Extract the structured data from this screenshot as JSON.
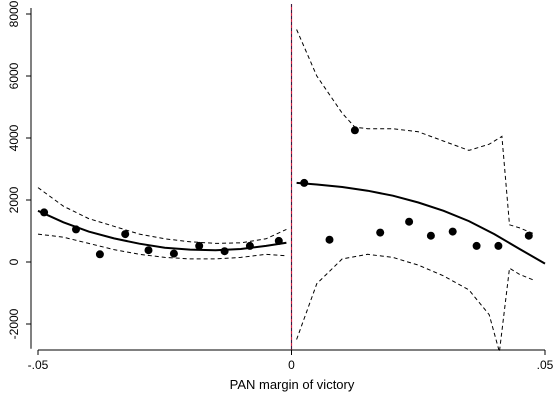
{
  "chart_data": {
    "type": "scatter",
    "title": "",
    "xlabel": "PAN margin of victory",
    "ylabel": "",
    "xlim": [
      -0.05,
      0.05
    ],
    "ylim": [
      -2800,
      8000
    ],
    "xticks": [
      -0.05,
      0,
      0.05
    ],
    "xtick_labels": [
      "-.05",
      "0",
      ".05"
    ],
    "yticks": [
      -2000,
      0,
      2000,
      4000,
      6000,
      8000
    ],
    "ytick_labels": [
      "-2000",
      "0",
      "2000",
      "4000",
      "6000",
      "8000"
    ],
    "grid": false,
    "legend": "none",
    "threshold_x": 0,
    "colors": {
      "points": "#000000",
      "fit": "#000000",
      "ci": "#000000",
      "threshold": "#8b1a4a"
    },
    "series": [
      {
        "kind": "scatter",
        "x": [
          -0.0488,
          -0.0425,
          -0.0378,
          -0.0328,
          -0.0282,
          -0.0232,
          -0.0182,
          -0.0132,
          -0.0082,
          -0.0025,
          0.0025,
          0.0075,
          0.0125,
          0.0175,
          0.0232,
          0.0275,
          0.0318,
          0.0365,
          0.0408,
          0.0468
        ],
        "y": [
          1600,
          1050,
          250,
          900,
          380,
          270,
          520,
          350,
          520,
          680,
          2550,
          720,
          4250,
          950,
          1300,
          850,
          980,
          520,
          520,
          850
        ]
      },
      {
        "kind": "line",
        "style": "solid",
        "x": [
          -0.05,
          -0.045,
          -0.04,
          -0.035,
          -0.03,
          -0.025,
          -0.02,
          -0.015,
          -0.01,
          -0.005,
          -0.001
        ],
        "y": [
          1650,
          1280,
          980,
          760,
          590,
          460,
          400,
          380,
          420,
          520,
          620
        ]
      },
      {
        "kind": "line",
        "style": "dashed",
        "x": [
          -0.05,
          -0.045,
          -0.04,
          -0.035,
          -0.03,
          -0.025,
          -0.02,
          -0.015,
          -0.01,
          -0.005,
          -0.001
        ],
        "y": [
          2400,
          1800,
          1400,
          1150,
          900,
          750,
          650,
          600,
          620,
          750,
          1050
        ]
      },
      {
        "kind": "line",
        "style": "dashed",
        "x": [
          -0.05,
          -0.045,
          -0.04,
          -0.035,
          -0.03,
          -0.025,
          -0.02,
          -0.015,
          -0.01,
          -0.005,
          -0.001
        ],
        "y": [
          900,
          800,
          600,
          400,
          250,
          150,
          100,
          100,
          150,
          250,
          200
        ]
      },
      {
        "kind": "line",
        "style": "solid",
        "x": [
          0.001,
          0.005,
          0.01,
          0.015,
          0.02,
          0.025,
          0.03,
          0.035,
          0.04,
          0.045,
          0.05
        ],
        "y": [
          2550,
          2500,
          2420,
          2300,
          2140,
          1920,
          1650,
          1320,
          900,
          420,
          -50
        ]
      },
      {
        "kind": "line",
        "style": "dashed",
        "x": [
          0.001,
          0.005,
          0.01,
          0.0125,
          0.015,
          0.02,
          0.025,
          0.03,
          0.035,
          0.039,
          0.0415,
          0.043,
          0.045,
          0.048
        ],
        "y": [
          7500,
          6000,
          4800,
          4350,
          4300,
          4300,
          4200,
          3900,
          3600,
          3800,
          4050,
          1200,
          1100,
          900
        ]
      },
      {
        "kind": "line",
        "style": "dashed",
        "x": [
          0.001,
          0.005,
          0.01,
          0.015,
          0.02,
          0.025,
          0.03,
          0.035,
          0.039,
          0.041,
          0.043,
          0.045,
          0.048
        ],
        "y": [
          -2500,
          -700,
          100,
          250,
          150,
          -100,
          -450,
          -900,
          -1700,
          -2900,
          -200,
          -400,
          -600
        ]
      }
    ]
  }
}
